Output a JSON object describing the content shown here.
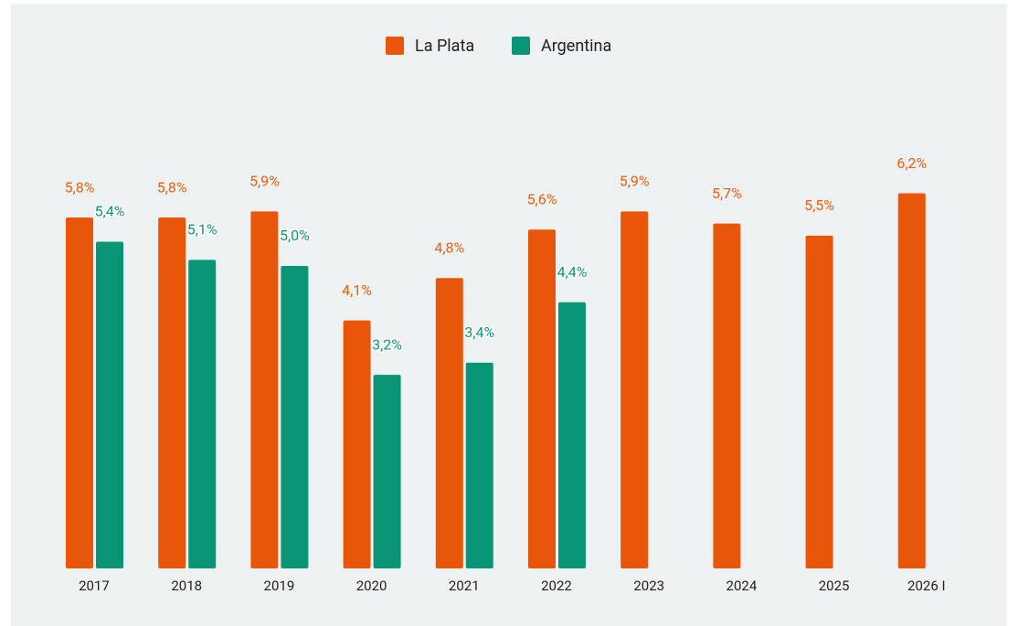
{
  "chart_data": {
    "type": "bar",
    "categories": [
      "2017",
      "2018",
      "2019",
      "2020",
      "2021",
      "2022",
      "2023",
      "2024",
      "2025",
      "2026 I"
    ],
    "series": [
      {
        "name": "La Plata",
        "color": "#e8560a",
        "values": [
          5.8,
          5.8,
          5.9,
          4.1,
          4.8,
          5.6,
          5.9,
          5.7,
          5.5,
          6.2
        ],
        "value_labels": [
          "5,8%",
          "5,8%",
          "5,9%",
          "4,1%",
          "4,8%",
          "5,6%",
          "5,9%",
          "5,7%",
          "5,5%",
          "6,2%"
        ]
      },
      {
        "name": "Argentina",
        "color": "#0a9676",
        "values": [
          5.4,
          5.1,
          5.0,
          3.2,
          3.4,
          4.4,
          null,
          null,
          null,
          null
        ],
        "value_labels": [
          "5,4%",
          "5,1%",
          "5,0%",
          "3,2%",
          "3,4%",
          "4,4%",
          null,
          null,
          null,
          null
        ]
      }
    ],
    "legend": "top"
  }
}
